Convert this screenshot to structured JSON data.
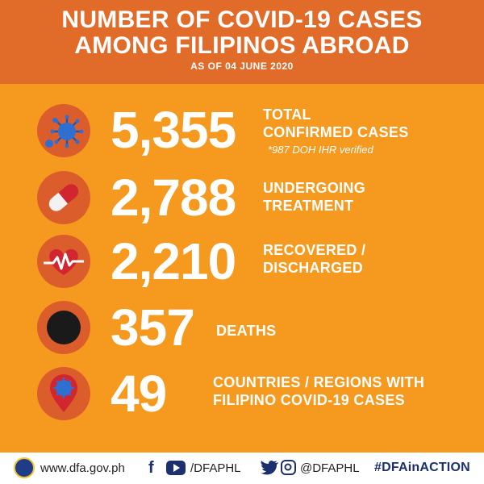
{
  "header": {
    "title_line1": "NUMBER OF COVID-19 CASES",
    "title_line2": "AMONG FILIPINOS ABROAD",
    "as_of": "AS OF 04 JUNE 2020"
  },
  "stats": [
    {
      "value": "5,355",
      "label_line1": "TOTAL",
      "label_line2": "CONFIRMED CASES",
      "note": "*987 DOH IHR verified",
      "icon": "virus-icon"
    },
    {
      "value": "2,788",
      "label_line1": "UNDERGOING",
      "label_line2": "TREATMENT",
      "icon": "capsule-icon"
    },
    {
      "value": "2,210",
      "label_line1": "RECOVERED /",
      "label_line2": "DISCHARGED",
      "icon": "heartbeat-icon"
    },
    {
      "value": "357",
      "label_line1": "DEATHS",
      "icon": "black-circle-icon"
    },
    {
      "value": "49",
      "label_line1": "COUNTRIES / REGIONS WITH",
      "label_line2": "FILIPINO COVID-19 CASES",
      "icon": "location-pin-virus-icon"
    }
  ],
  "footer": {
    "website": "www.dfa.gov.ph",
    "facebook_youtube_handle": "/DFAPHL",
    "twitter_instagram_handle": "@DFAPHL",
    "hashtag": "#DFAinACTION"
  },
  "colors": {
    "background": "#f59a1f",
    "header": "#e16b29",
    "icon_circle": "#dc5d2c",
    "footer_text_dark": "#1c2f6e"
  }
}
